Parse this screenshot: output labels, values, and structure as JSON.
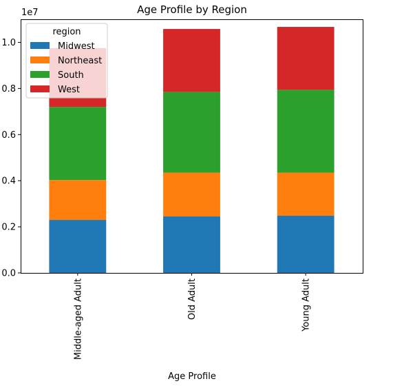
{
  "chart_data": {
    "type": "bar",
    "stacked": true,
    "title": "Age Profile by Region",
    "xlabel": "Age Profile",
    "ylabel": "",
    "offset_text": "1e7",
    "categories": [
      "Middle-aged Adult",
      "Old Adult",
      "Young Adult"
    ],
    "ylim": [
      0,
      1.1
    ],
    "yticks": [
      0.0,
      0.2,
      0.4,
      0.6,
      0.8,
      1.0
    ],
    "ytick_labels": [
      "0.0",
      "0.2",
      "0.4",
      "0.6",
      "0.8",
      "1.0"
    ],
    "legend": {
      "title": "region",
      "placement": "top-left"
    },
    "series": [
      {
        "name": "Midwest",
        "color": "#1f77b4",
        "values": [
          0.23,
          0.245,
          0.248
        ]
      },
      {
        "name": "Northeast",
        "color": "#ff7f0e",
        "values": [
          0.173,
          0.19,
          0.187
        ]
      },
      {
        "name": "South",
        "color": "#2ca02c",
        "values": [
          0.317,
          0.35,
          0.359
        ]
      },
      {
        "name": "West",
        "color": "#d62728",
        "values": [
          0.255,
          0.273,
          0.273
        ]
      }
    ]
  }
}
